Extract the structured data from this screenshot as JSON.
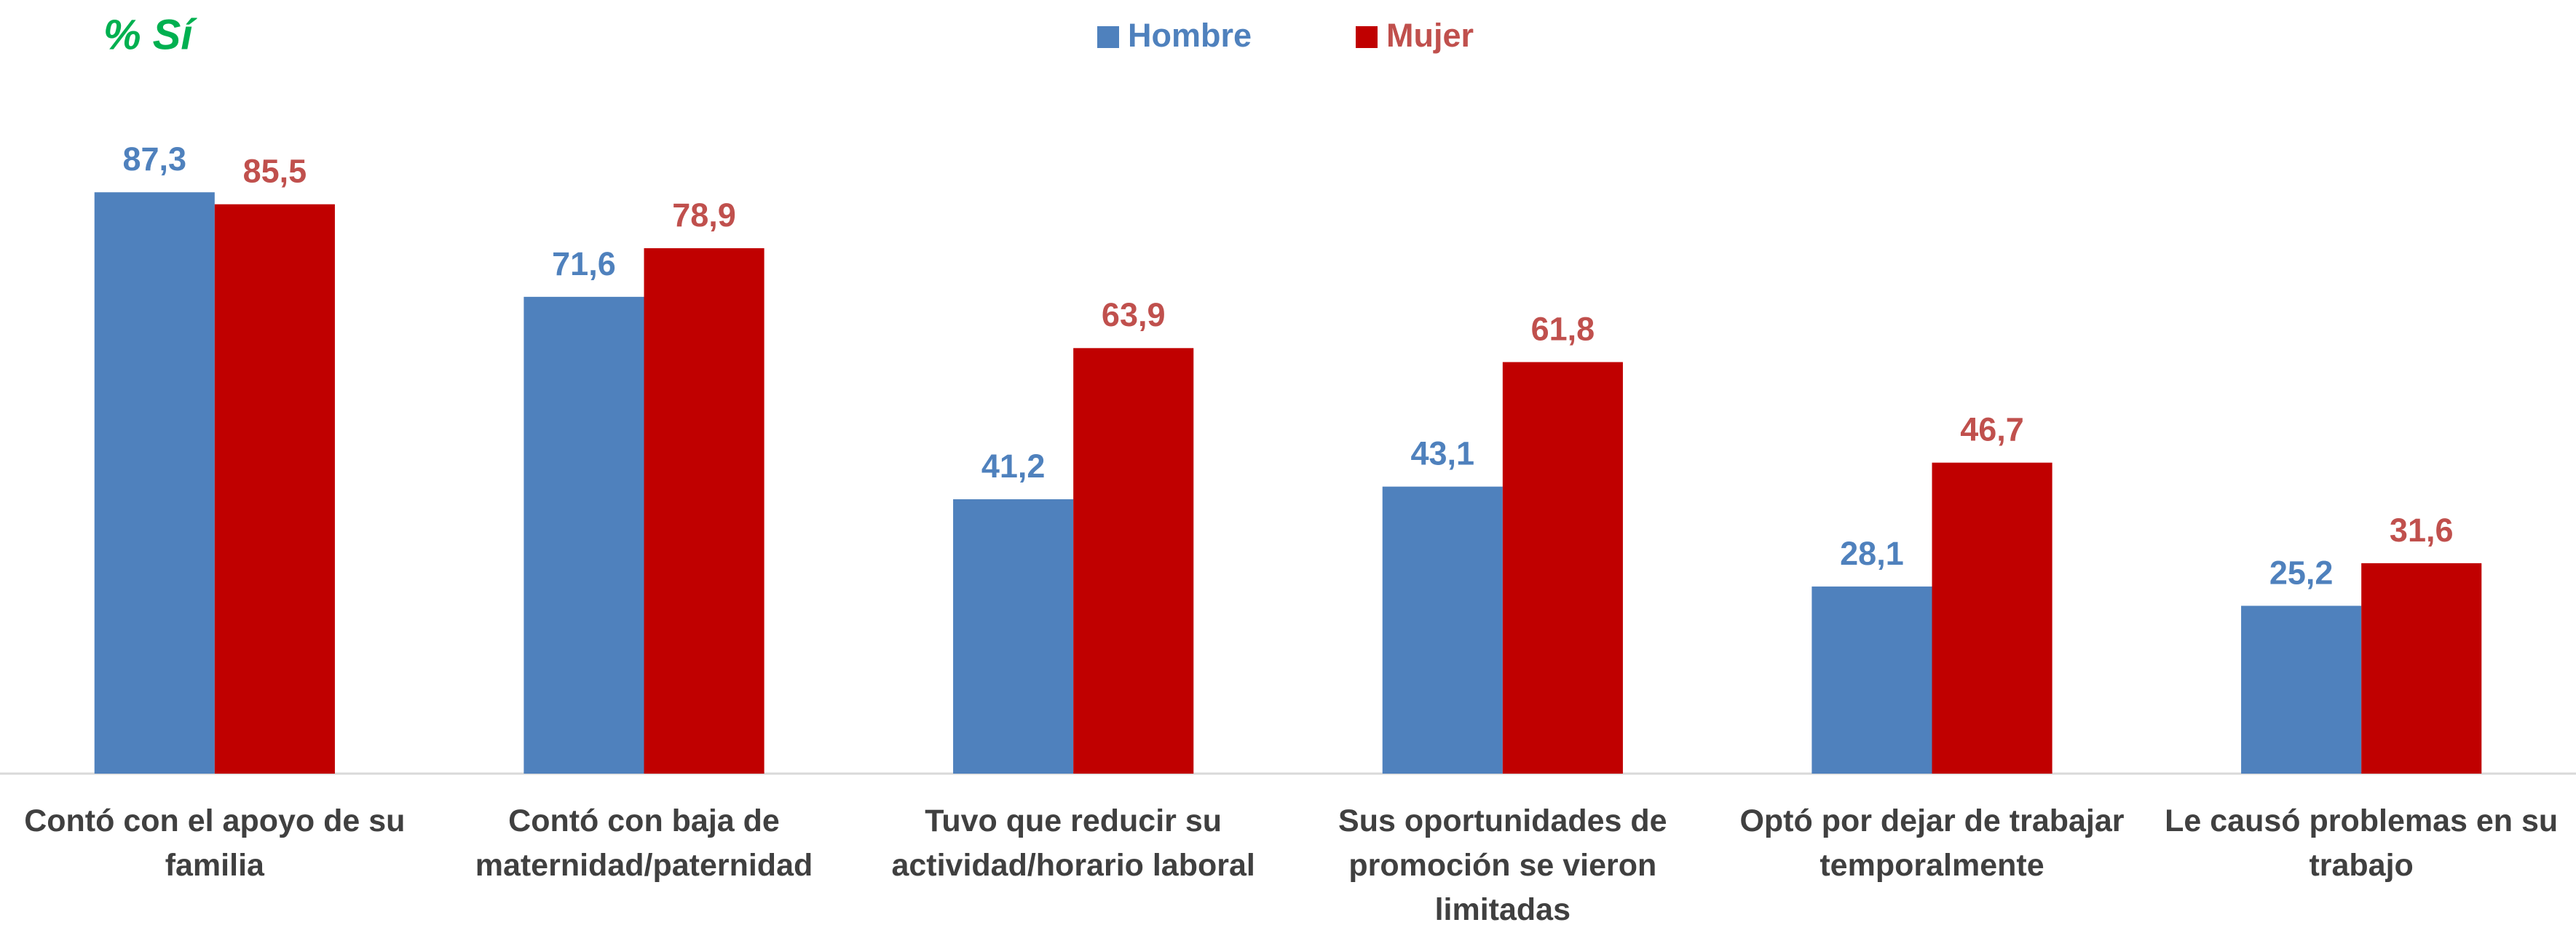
{
  "chart_data": {
    "type": "bar",
    "title": "% Sí",
    "categories": [
      "Contó con el apoyo de su familia",
      "Contó con baja de maternidad/paternidad",
      "Tuvo que reducir su actividad/horario laboral",
      "Sus oportunidades de promoción se vieron limitadas",
      "Optó por dejar de trabajar temporalmente",
      "Le causó problemas en su trabajo"
    ],
    "series": [
      {
        "name": "Hombre",
        "color": "#4f81bd",
        "values": [
          87.3,
          71.6,
          41.2,
          43.1,
          28.1,
          25.2
        ],
        "value_labels": [
          "87,3",
          "71,6",
          "41,2",
          "43,1",
          "28,1",
          "25,2"
        ]
      },
      {
        "name": "Mujer",
        "color": "#c00000",
        "values": [
          85.5,
          78.9,
          63.9,
          61.8,
          46.7,
          31.6
        ],
        "value_labels": [
          "85,5",
          "78,9",
          "63,9",
          "61,8",
          "46,7",
          "31,6"
        ]
      }
    ],
    "ylim": [
      0,
      100
    ],
    "legend": "top"
  }
}
